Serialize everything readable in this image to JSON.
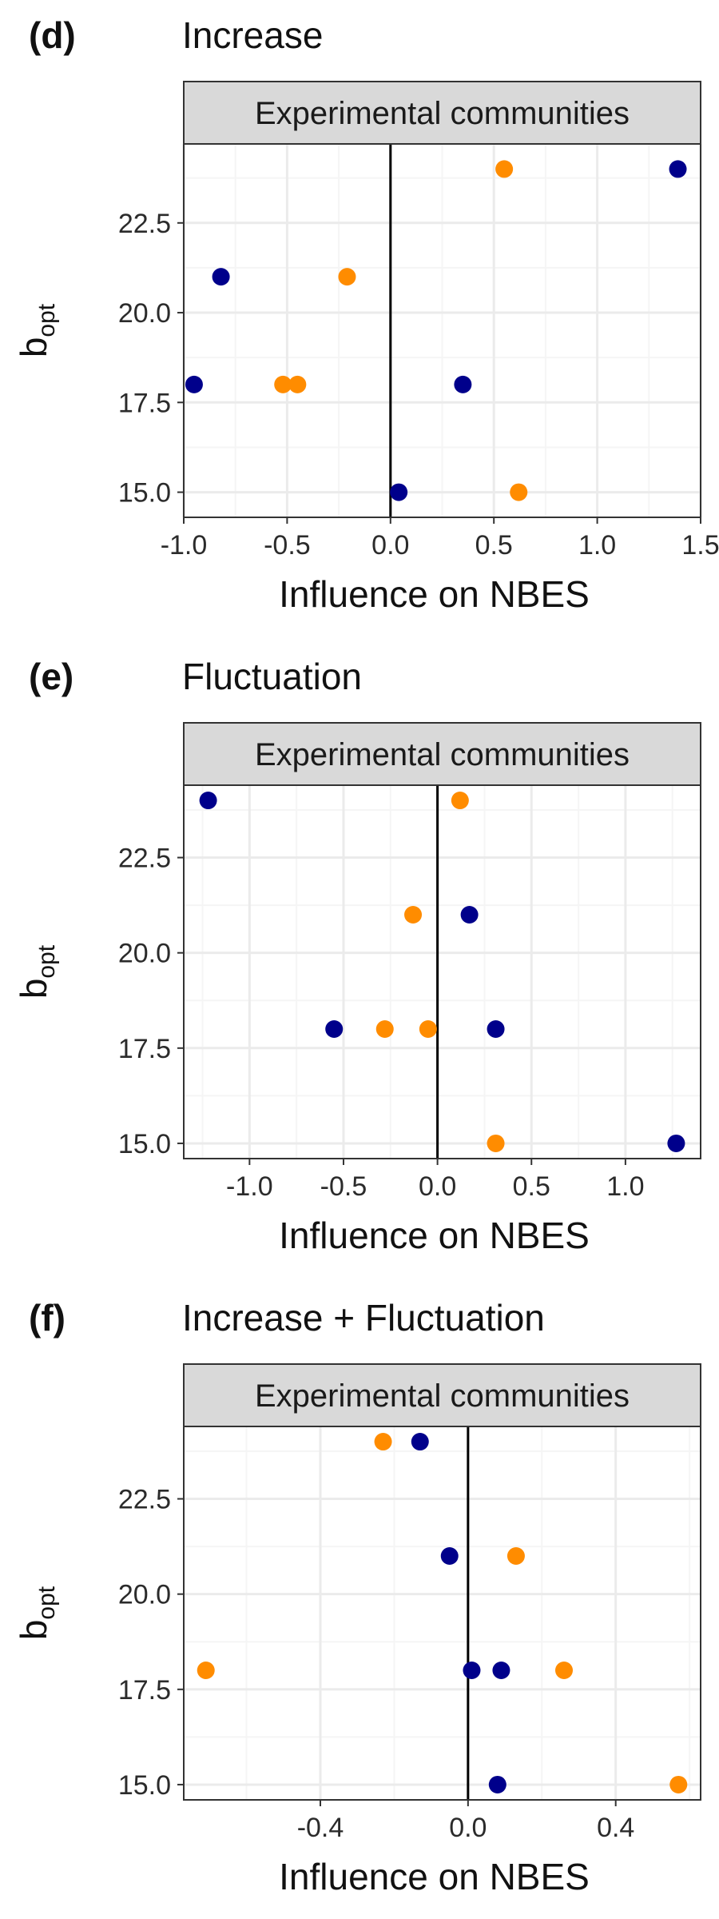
{
  "colors": {
    "navy": "#00008b",
    "orange": "#ff8c00",
    "strip_fill": "#d9d9d9",
    "grid_major": "#ebebeb",
    "grid_minor": "#f5f5f5",
    "frame": "#333333",
    "zero_line": "#000000"
  },
  "chart_data": [
    {
      "type": "scatter",
      "panel": "(d)",
      "title": "Increase",
      "facet": "Experimental communities",
      "xlabel": "Influence on NBES",
      "ylabel": "b",
      "ylabel_sub": "opt",
      "xlim": [
        -1.0,
        1.5
      ],
      "ylim": [
        14.3,
        24.7
      ],
      "xticks": [
        -1.0,
        -0.5,
        0.0,
        0.5,
        1.0,
        1.5
      ],
      "xtick_labels": [
        "-1.0",
        "-0.5",
        "0.0",
        "0.5",
        "1.0",
        "1.5"
      ],
      "yticks": [
        15.0,
        17.5,
        20.0,
        22.5
      ],
      "ytick_labels": [
        "15.0",
        "17.5",
        "20.0",
        "22.5"
      ],
      "vline": 0,
      "grid": true,
      "series": [
        {
          "color": "navy",
          "points": [
            {
              "x": 1.39,
              "y": 24
            },
            {
              "x": -0.82,
              "y": 21
            },
            {
              "x": -0.95,
              "y": 18
            },
            {
              "x": 0.35,
              "y": 18
            },
            {
              "x": 0.04,
              "y": 15
            }
          ]
        },
        {
          "color": "orange",
          "points": [
            {
              "x": 0.55,
              "y": 24
            },
            {
              "x": -0.21,
              "y": 21
            },
            {
              "x": -0.52,
              "y": 18
            },
            {
              "x": -0.45,
              "y": 18
            },
            {
              "x": 0.62,
              "y": 15
            }
          ]
        }
      ]
    },
    {
      "type": "scatter",
      "panel": "(e)",
      "title": "Fluctuation",
      "facet": "Experimental communities",
      "xlabel": "Influence on NBES",
      "ylabel": "b",
      "ylabel_sub": "opt",
      "xlim": [
        -1.35,
        1.4
      ],
      "ylim": [
        14.6,
        24.4
      ],
      "xticks": [
        -1.0,
        -0.5,
        0.0,
        0.5,
        1.0
      ],
      "xtick_labels": [
        "-1.0",
        "-0.5",
        "0.0",
        "0.5",
        "1.0"
      ],
      "yticks": [
        15.0,
        17.5,
        20.0,
        22.5
      ],
      "ytick_labels": [
        "15.0",
        "17.5",
        "20.0",
        "22.5"
      ],
      "vline": 0,
      "grid": true,
      "series": [
        {
          "color": "navy",
          "points": [
            {
              "x": -1.22,
              "y": 24
            },
            {
              "x": 0.17,
              "y": 21
            },
            {
              "x": -0.55,
              "y": 18
            },
            {
              "x": 0.31,
              "y": 18
            },
            {
              "x": 1.27,
              "y": 15
            }
          ]
        },
        {
          "color": "orange",
          "points": [
            {
              "x": 0.12,
              "y": 24
            },
            {
              "x": -0.13,
              "y": 21
            },
            {
              "x": -0.28,
              "y": 18
            },
            {
              "x": -0.05,
              "y": 18
            },
            {
              "x": 0.31,
              "y": 15
            }
          ]
        }
      ]
    },
    {
      "type": "scatter",
      "panel": "(f)",
      "title": "Increase + Fluctuation",
      "facet": "Experimental communities",
      "xlabel": "Influence on NBES",
      "ylabel": "b",
      "ylabel_sub": "opt",
      "xlim": [
        -0.77,
        0.63
      ],
      "ylim": [
        14.6,
        24.4
      ],
      "xticks": [
        -0.4,
        0.0,
        0.4
      ],
      "xtick_labels": [
        "-0.4",
        "0.0",
        "0.4"
      ],
      "yticks": [
        15.0,
        17.5,
        20.0,
        22.5
      ],
      "ytick_labels": [
        "15.0",
        "17.5",
        "20.0",
        "22.5"
      ],
      "vline": 0,
      "grid": true,
      "series": [
        {
          "color": "navy",
          "points": [
            {
              "x": -0.13,
              "y": 24
            },
            {
              "x": -0.05,
              "y": 21
            },
            {
              "x": 0.01,
              "y": 18
            },
            {
              "x": 0.09,
              "y": 18
            },
            {
              "x": 0.08,
              "y": 15
            }
          ]
        },
        {
          "color": "orange",
          "points": [
            {
              "x": -0.23,
              "y": 24
            },
            {
              "x": 0.13,
              "y": 21
            },
            {
              "x": -0.71,
              "y": 18
            },
            {
              "x": 0.26,
              "y": 18
            },
            {
              "x": 0.57,
              "y": 15
            }
          ]
        }
      ]
    }
  ]
}
